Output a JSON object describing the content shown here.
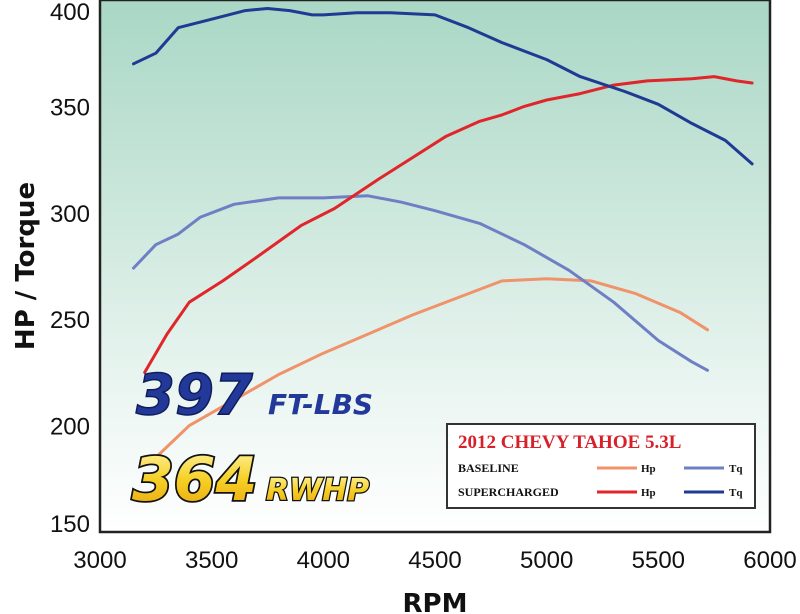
{
  "chart_data": {
    "type": "line",
    "title": "2012 CHEVY TAHOE 5.3L",
    "xlabel": "RPM",
    "ylabel": "HP / Torque",
    "xlim": [
      3000,
      6000
    ],
    "ylim": [
      150,
      400
    ],
    "x_ticks": [
      "3000",
      "3500",
      "4000",
      "4500",
      "5000",
      "5500",
      "6000"
    ],
    "y_ticks": [
      "150",
      "200",
      "250",
      "300",
      "350",
      "400"
    ],
    "grid": false,
    "legend_position": "bottom-right",
    "legend": {
      "title": "2012 CHEVY TAHOE 5.3L",
      "rows": [
        {
          "label": "BASELINE",
          "hp": "Hp",
          "tq": "Tq"
        },
        {
          "label": "SUPERCHARGED",
          "hp": "Hp",
          "tq": "Tq"
        }
      ]
    },
    "headline_torque": {
      "value": "397",
      "unit": "FT-LBS"
    },
    "headline_power": {
      "value": "364",
      "unit": "RWHP"
    },
    "colors": {
      "baseline_hp": "#f0926a",
      "baseline_tq": "#6f7fc4",
      "supercharged_hp": "#e0262a",
      "supercharged_tq": "#1f3a93",
      "headline_blue": "#23399a",
      "headline_gold": "#f2c21a",
      "legend_title": "#d8202a",
      "bg_top": "#a9d7c5",
      "bg_bottom": "#ffffff"
    },
    "series": [
      {
        "key": "baseline_hp",
        "x": [
          3250,
          3400,
          3600,
          3800,
          4000,
          4200,
          4400,
          4600,
          4800,
          5000,
          5200,
          5400,
          5600,
          5720
        ],
        "y": [
          185,
          200,
          212,
          224,
          234,
          243,
          252,
          260,
          268,
          269,
          268,
          262,
          253,
          245
        ]
      },
      {
        "key": "baseline_tq",
        "x": [
          3150,
          3250,
          3350,
          3450,
          3600,
          3800,
          4000,
          4200,
          4350,
          4500,
          4700,
          4900,
          5100,
          5300,
          5500,
          5650,
          5720
        ],
        "y": [
          274,
          285,
          290,
          298,
          304,
          307,
          307,
          308,
          305,
          301,
          295,
          285,
          273,
          258,
          240,
          230,
          226
        ]
      },
      {
        "key": "supercharged_hp",
        "x": [
          3200,
          3300,
          3400,
          3550,
          3700,
          3900,
          4050,
          4250,
          4400,
          4550,
          4700,
          4800,
          4900,
          5000,
          5150,
          5300,
          5450,
          5650,
          5750,
          5850,
          5920
        ],
        "y": [
          225,
          243,
          258,
          268,
          279,
          294,
          302,
          316,
          326,
          336,
          343,
          346,
          350,
          353,
          356,
          360,
          362,
          363,
          364,
          362,
          361
        ]
      },
      {
        "key": "supercharged_tq",
        "x": [
          3150,
          3250,
          3350,
          3500,
          3650,
          3750,
          3850,
          3950,
          4000,
          4150,
          4300,
          4500,
          4650,
          4800,
          5000,
          5150,
          5350,
          5500,
          5650,
          5800,
          5920
        ],
        "y": [
          370,
          375,
          387,
          391,
          395,
          396,
          395,
          393,
          393,
          394,
          394,
          393,
          387,
          380,
          372,
          364,
          357,
          351,
          342,
          334,
          323
        ]
      }
    ]
  }
}
